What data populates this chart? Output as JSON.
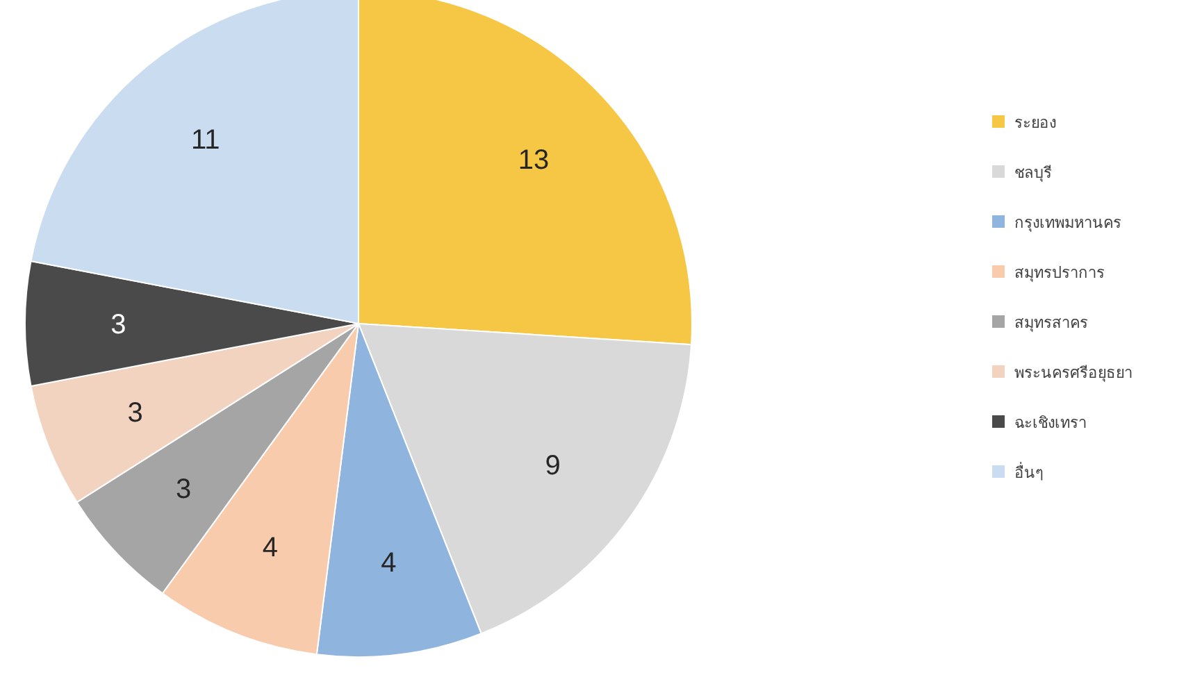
{
  "chart_data": {
    "type": "pie",
    "categories": [
      "ระยอง",
      "ชลบุรี",
      "กรุงเทพมหานคร",
      "สมุทรปราการ",
      "สมุทรสาคร",
      "พระนครศรีอยุธยา",
      "ฉะเชิงเทรา",
      "อื่นๆ"
    ],
    "values": [
      13,
      9,
      4,
      4,
      3,
      3,
      3,
      11
    ],
    "colors": [
      "#f6c744",
      "#d9d9d9",
      "#8fb4de",
      "#f8cbad",
      "#a5a5a5",
      "#f2d3c0",
      "#4a4a4a",
      "#c9dcf0"
    ],
    "data_labels": true,
    "legend": "right"
  }
}
